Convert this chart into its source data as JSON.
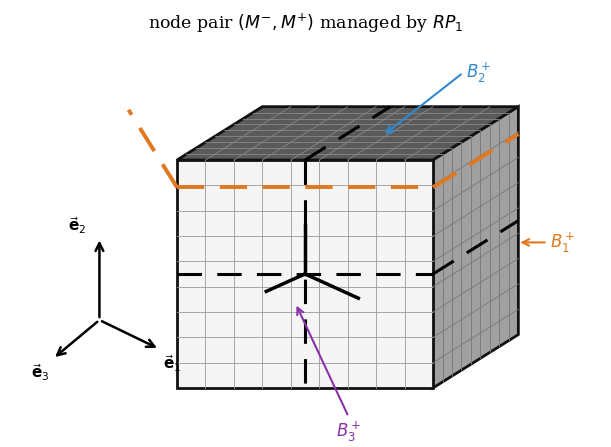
{
  "title": "node pair $\\left(M^{-},M^{+}\\right)$ managed by $RP_1$",
  "title_fontsize": 12.5,
  "background_color": "#ffffff",
  "front_face_color": "#f5f5f5",
  "top_face_color": "#5a5a5a",
  "right_face_color": "#a0a0a0",
  "edge_color": "#111111",
  "grid_color": "#999999",
  "grid_n": 9,
  "orange_color": "#e07820",
  "blue_color": "#3388cc",
  "purple_color": "#8833aa",
  "black_color": "#111111",
  "label_B2": "$B_2^+$",
  "label_B1": "$B_1^+$",
  "label_B3": "$B_3^+$",
  "label_e1": "$\\vec{\\mathbf{e}}_1$",
  "label_e2": "$\\vec{\\mathbf{e}}_2$",
  "label_e3": "$\\vec{\\mathbf{e}}_3$",
  "figwidth": 6.11,
  "figheight": 4.47,
  "dpi": 100
}
